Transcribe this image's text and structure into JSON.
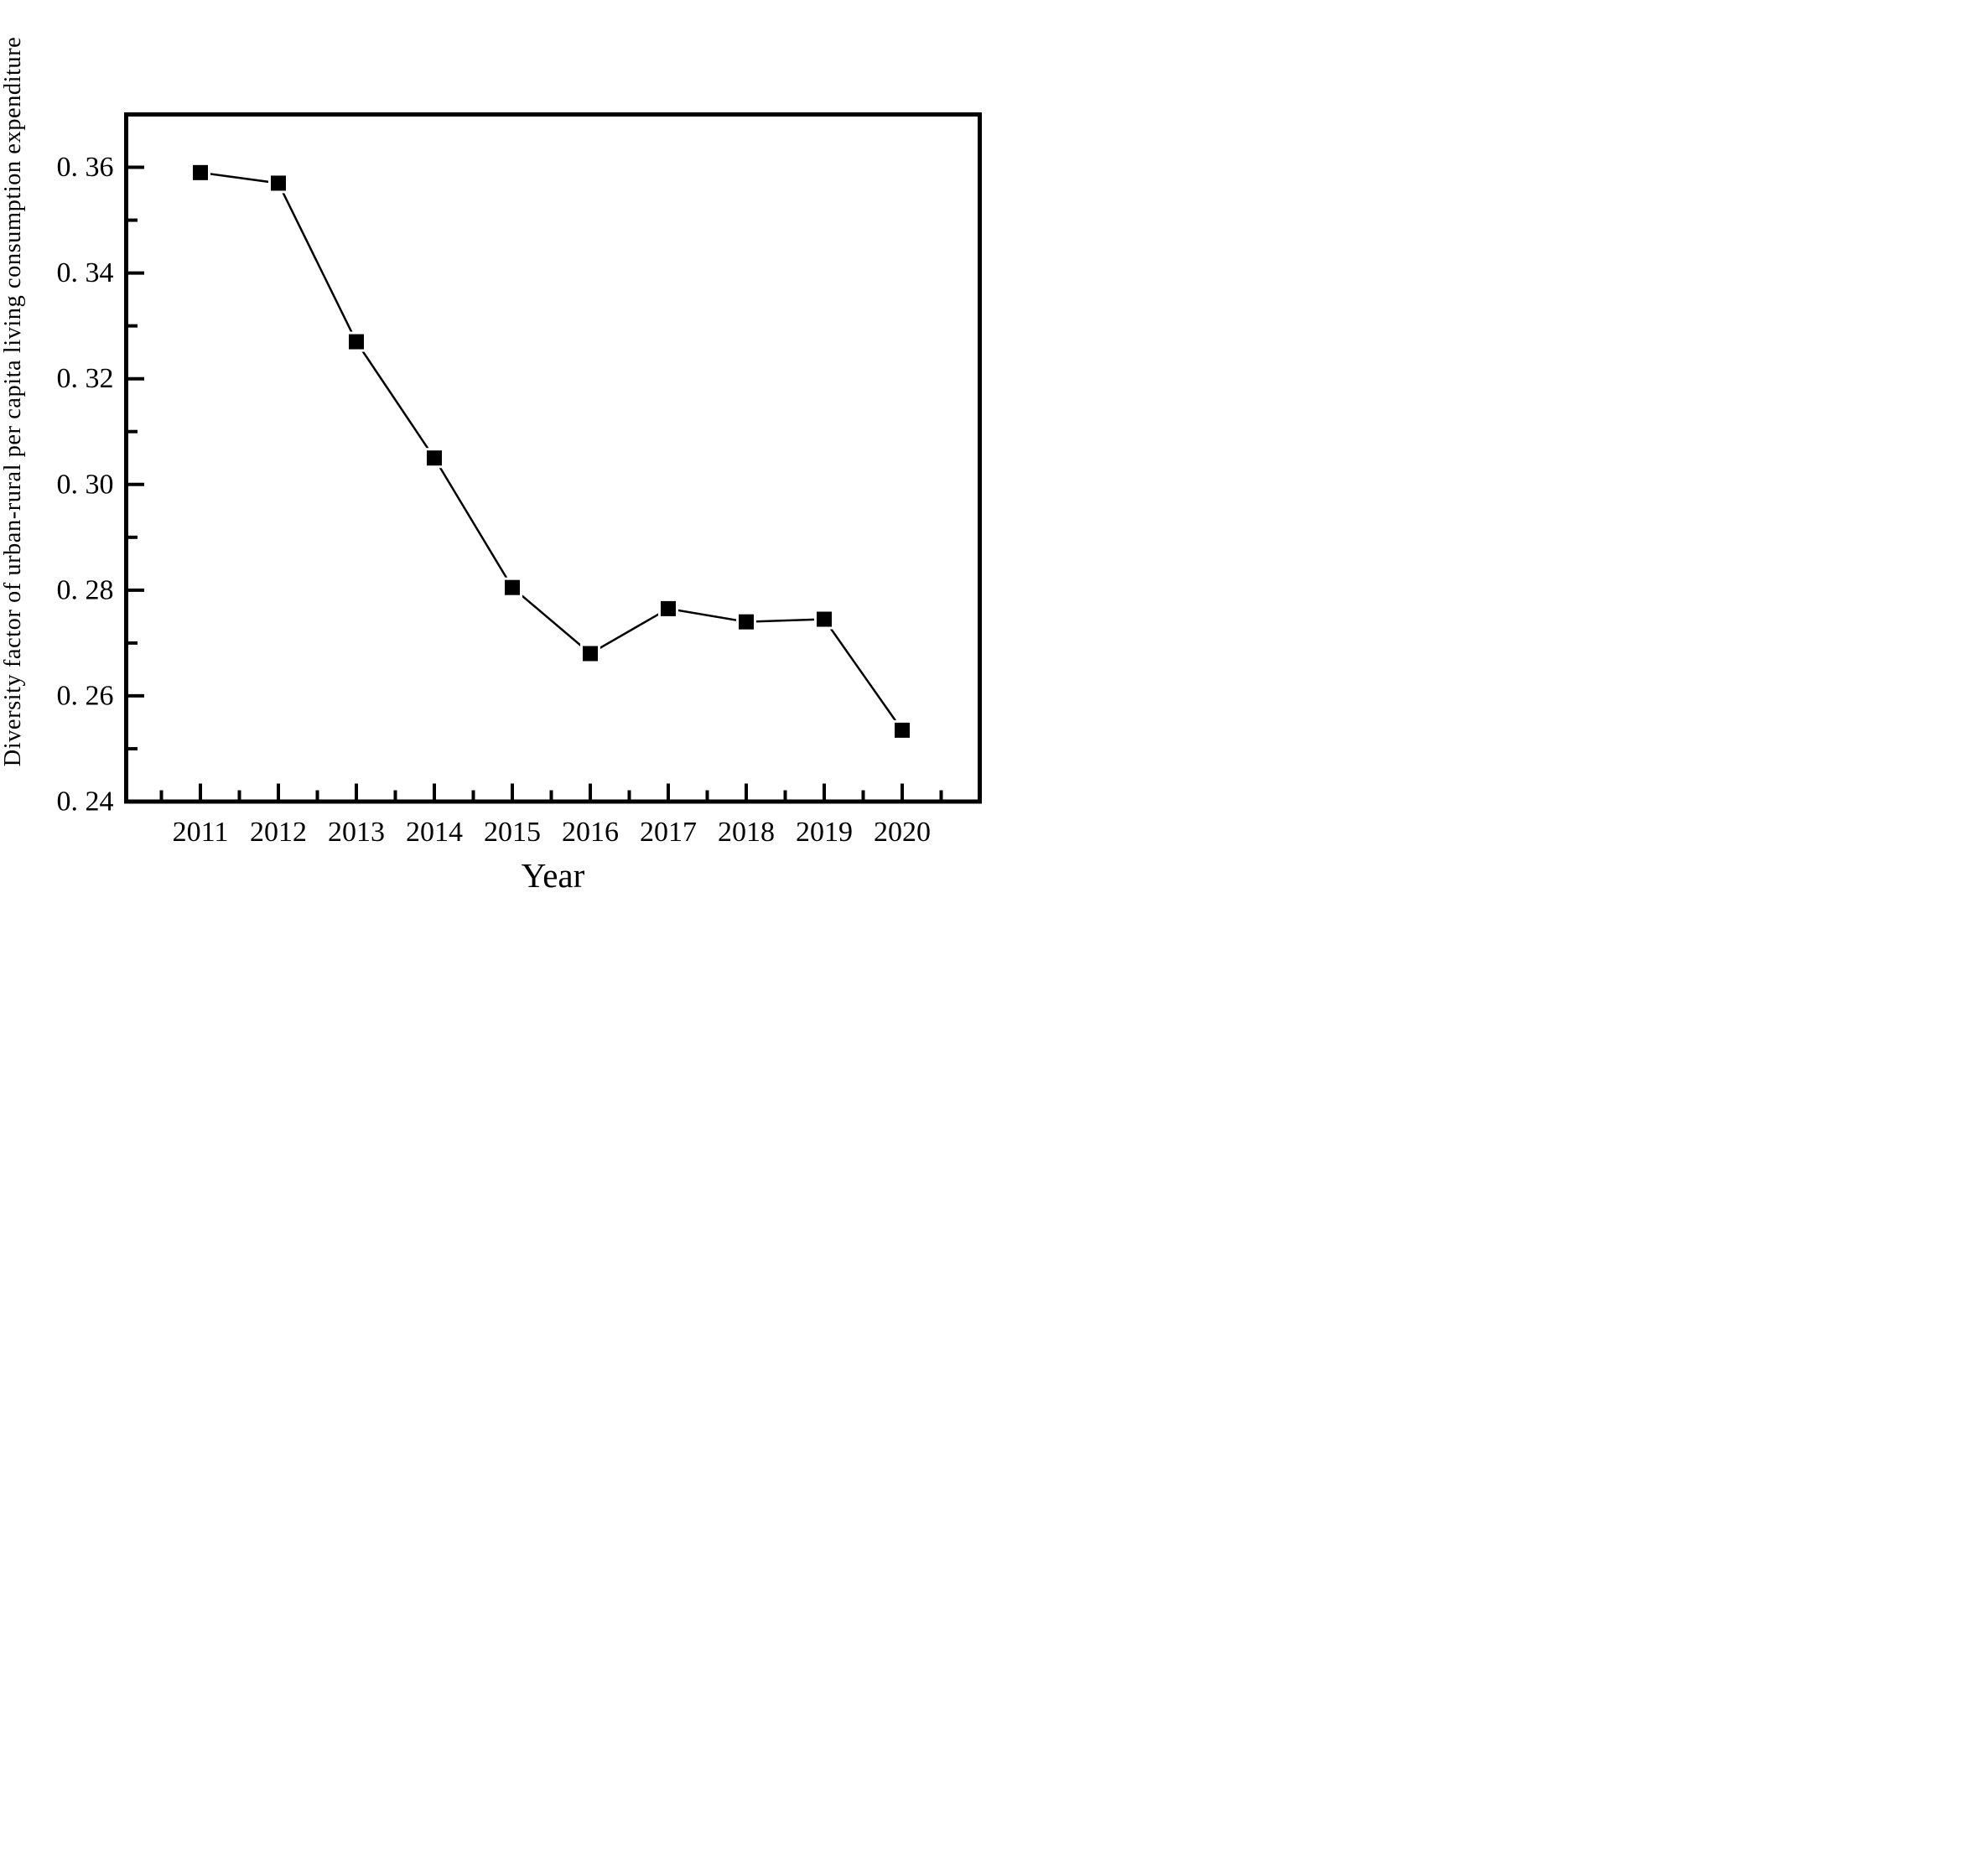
{
  "figure": {
    "background_color": "#ffffff",
    "foreground_color": "#000000"
  },
  "chart_data": {
    "type": "line",
    "title": "",
    "xlabel": "Year",
    "ylabel": "Diversity factor of urban-rural per capita living consumption expenditure",
    "categories": [
      "2011",
      "2012",
      "2013",
      "2014",
      "2015",
      "2016",
      "2017",
      "2018",
      "2019",
      "2020"
    ],
    "x": [
      2011,
      2012,
      2013,
      2014,
      2015,
      2016,
      2017,
      2018,
      2019,
      2020
    ],
    "values": [
      0.359,
      0.357,
      0.327,
      0.305,
      0.2805,
      0.268,
      0.2765,
      0.274,
      0.2745,
      0.2535
    ],
    "ylim": [
      0.24,
      0.37
    ],
    "yticks_major": [
      0.36,
      0.34,
      0.32,
      0.3,
      0.28,
      0.26,
      0.24
    ],
    "ytick_labels": [
      "0. 36",
      "0. 34",
      "0. 32",
      "0. 30",
      "0. 28",
      "0. 26",
      "0. 24"
    ],
    "yticks_minor": [
      0.35,
      0.33,
      0.31,
      0.29,
      0.27,
      0.25
    ],
    "marker": "filled-square",
    "marker_color": "#000000",
    "line_color": "#000000",
    "grid": false,
    "legend": null,
    "ticks_direction": "in",
    "plot_border": "full-box"
  }
}
